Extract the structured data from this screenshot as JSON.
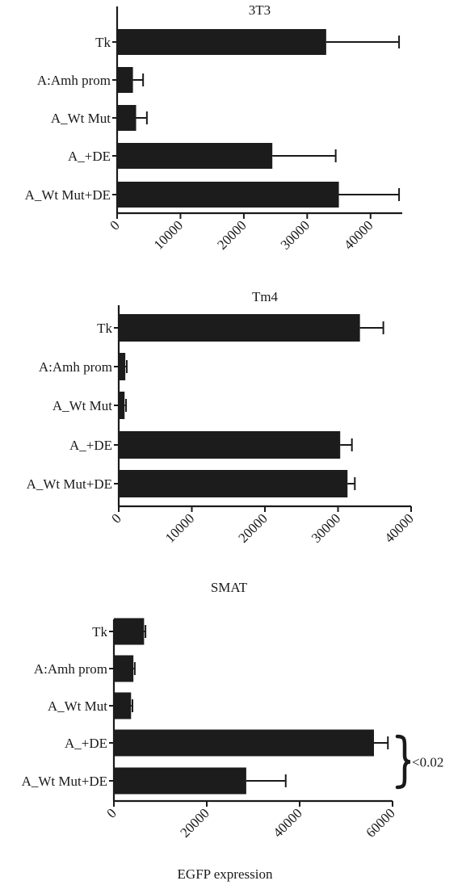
{
  "chart_data": [
    {
      "type": "bar",
      "orientation": "horizontal",
      "title": "3T3",
      "categories": [
        "Tk",
        "A:Amh prom",
        "A_Wt Mut",
        "A_+DE",
        "A_Wt Mut+DE"
      ],
      "values": [
        33000,
        2500,
        3000,
        24500,
        35000
      ],
      "errors": [
        11500,
        1600,
        1700,
        10000,
        9500
      ],
      "xlim": [
        0,
        45000
      ],
      "xticks": [
        0,
        10000,
        20000,
        30000,
        40000
      ],
      "xlabel": "",
      "bar_color": "#1c1c1c"
    },
    {
      "type": "bar",
      "orientation": "horizontal",
      "title": "Tm4",
      "categories": [
        "Tk",
        "A:Amh prom",
        "A_Wt Mut",
        "A_+DE",
        "A_Wt Mut+DE"
      ],
      "values": [
        33000,
        900,
        800,
        30300,
        31300
      ],
      "errors": [
        3200,
        200,
        200,
        1600,
        1000
      ],
      "xlim": [
        0,
        40000
      ],
      "xticks": [
        0,
        10000,
        20000,
        30000,
        40000
      ],
      "xlabel": "",
      "bar_color": "#1c1c1c"
    },
    {
      "type": "bar",
      "orientation": "horizontal",
      "title": "SMAT",
      "categories": [
        "Tk",
        "A:Amh prom",
        "A_Wt Mut",
        "A_+DE",
        "A_Wt Mut+DE"
      ],
      "values": [
        6500,
        4200,
        3700,
        56000,
        28500
      ],
      "errors": [
        300,
        300,
        300,
        3000,
        8500
      ],
      "xlim": [
        0,
        60000
      ],
      "xticks": [
        0,
        20000,
        40000,
        60000
      ],
      "xlabel": "EGFP expression",
      "bar_color": "#1c1c1c",
      "annotation": {
        "text": "<0.02",
        "between": [
          "A_+DE",
          "A_Wt Mut+DE"
        ]
      }
    }
  ]
}
